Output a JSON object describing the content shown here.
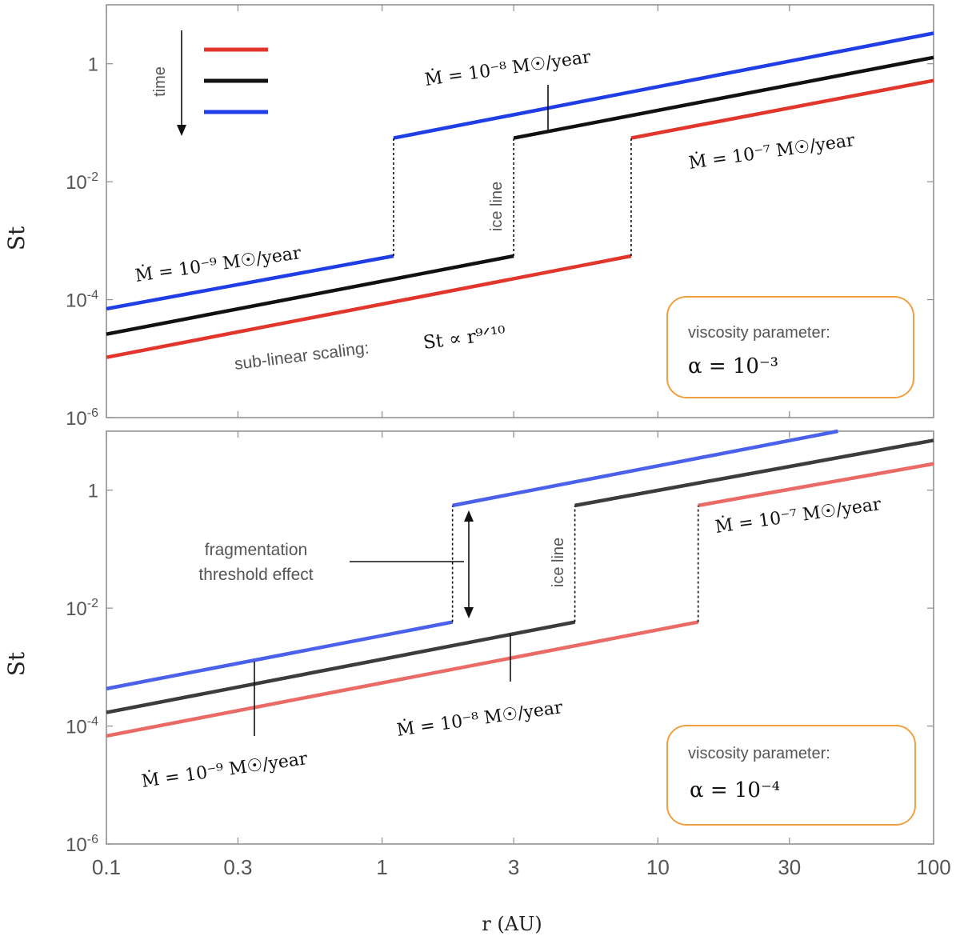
{
  "chart_data": [
    {
      "type": "line",
      "xscale": "log",
      "yscale": "log",
      "xlim": [
        0.1,
        100
      ],
      "ylim": [
        1e-06,
        10
      ],
      "ylabel": "St",
      "y_ticks": [
        {
          "mant": "1",
          "exp": ""
        },
        {
          "mant": "10",
          "exp": "-2"
        },
        {
          "mant": "10",
          "exp": "-4"
        },
        {
          "mant": "10",
          "exp": "-6"
        }
      ],
      "series": [
        {
          "color": "#e2352b",
          "rate_label": "Ṁ = 10⁻⁷ M☉/year",
          "ice_line_r": 8.0,
          "inner": {
            "x": [
              0.1,
              8.0
            ],
            "y": [
              1.05e-05,
              0.00055
            ]
          },
          "outer": {
            "x": [
              8.0,
              100
            ],
            "y": [
              0.055,
              0.52
            ]
          }
        },
        {
          "color": "#111111",
          "rate_label": "Ṁ = 10⁻⁸ M☉/year",
          "ice_line_r": 3.0,
          "inner": {
            "x": [
              0.1,
              3.0
            ],
            "y": [
              2.6e-05,
              0.00055
            ]
          },
          "outer": {
            "x": [
              3.0,
              100
            ],
            "y": [
              0.055,
              1.28
            ]
          }
        },
        {
          "color": "#1f3ee6",
          "rate_label": "Ṁ = 10⁻⁹ M☉/year",
          "ice_line_r": 1.1,
          "inner": {
            "x": [
              0.1,
              1.1
            ],
            "y": [
              7e-05,
              0.00055
            ]
          },
          "outer": {
            "x": [
              1.1,
              100
            ],
            "y": [
              0.055,
              3.3
            ]
          }
        }
      ],
      "legend": {
        "arrow_label": "time"
      },
      "annotations": {
        "ice_line": "ice line",
        "scaling_text": "sub-linear scaling:",
        "scaling_formula": "St ∝ r⁹ᐟ¹⁰",
        "viscosity_title": "viscosity parameter:",
        "viscosity_value": "α = 10⁻³"
      }
    },
    {
      "type": "line",
      "xscale": "log",
      "yscale": "log",
      "xlim": [
        0.1,
        100
      ],
      "ylim": [
        1e-06,
        10
      ],
      "xlabel": "r (AU)",
      "ylabel": "St",
      "x_ticks": [
        "0.1",
        "0.3",
        "1",
        "3",
        "10",
        "30",
        "100"
      ],
      "y_ticks": [
        {
          "mant": "1",
          "exp": ""
        },
        {
          "mant": "10",
          "exp": "-2"
        },
        {
          "mant": "10",
          "exp": "-4"
        },
        {
          "mant": "10",
          "exp": "-6"
        }
      ],
      "series": [
        {
          "color": "#ea6a66",
          "rate_label": "Ṁ = 10⁻⁷ M☉/year",
          "ice_line_r": 14.0,
          "inner": {
            "x": [
              0.1,
              14.0
            ],
            "y": [
              6.8e-05,
              0.0058
            ]
          },
          "outer": {
            "x": [
              14.0,
              100
            ],
            "y": [
              0.55,
              2.8
            ]
          }
        },
        {
          "color": "#3c3c3c",
          "rate_label": "Ṁ = 10⁻⁸ M☉/year",
          "ice_line_r": 5.0,
          "inner": {
            "x": [
              0.1,
              5.0
            ],
            "y": [
              0.00017,
              0.0058
            ]
          },
          "outer": {
            "x": [
              5.0,
              100
            ],
            "y": [
              0.55,
              7.0
            ]
          }
        },
        {
          "color": "#4a61ea",
          "rate_label": "Ṁ = 10⁻⁹ M☉/year",
          "ice_line_r": 1.8,
          "inner": {
            "x": [
              0.1,
              1.8
            ],
            "y": [
              0.00043,
              0.0058
            ]
          },
          "outer": {
            "x": [
              1.8,
              45
            ],
            "y": [
              0.55,
              10
            ]
          }
        }
      ],
      "annotations": {
        "ice_line": "ice line",
        "fragmentation_line1": "fragmentation",
        "fragmentation_line2": "threshold effect",
        "viscosity_title": "viscosity parameter:",
        "viscosity_value": "α = 10⁻⁴"
      }
    }
  ]
}
